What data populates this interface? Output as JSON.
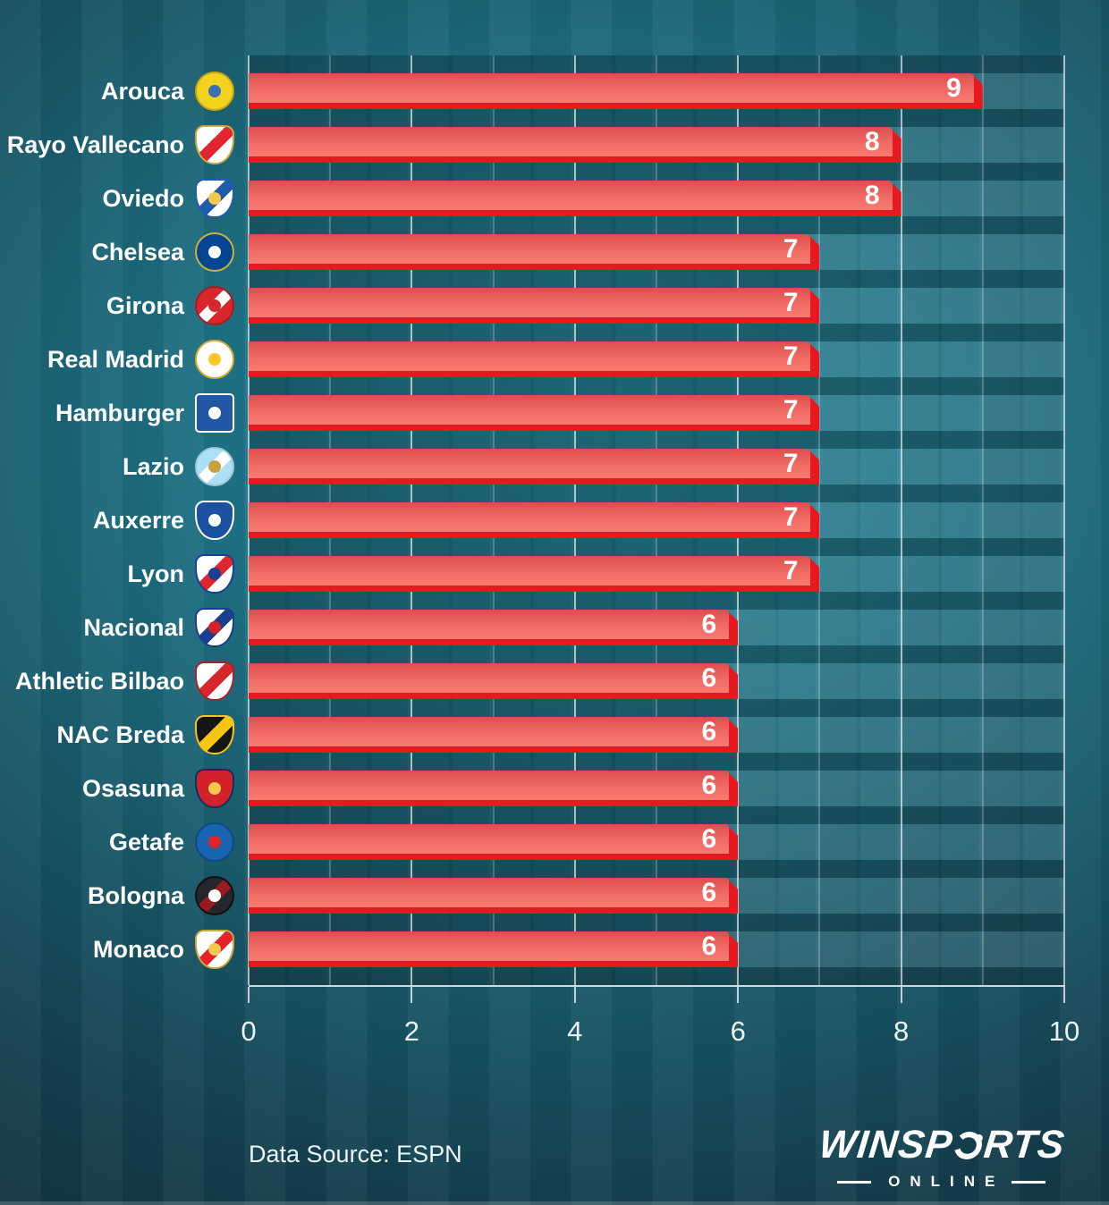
{
  "chart_data": {
    "type": "bar",
    "orientation": "horizontal",
    "title": "",
    "xlabel": "",
    "ylabel": "",
    "xlim": [
      0,
      10
    ],
    "x_ticks": [
      0,
      2,
      4,
      6,
      8,
      10
    ],
    "x_tick_labels": [
      "0",
      "2",
      "4",
      "6",
      "8",
      "10"
    ],
    "grid": "vertical unit gridlines, brighter at even values",
    "legend": "none",
    "categories": [
      "Arouca",
      "Rayo Vallecano",
      "Oviedo",
      "Chelsea",
      "Girona",
      "Real Madrid",
      "Hamburger",
      "Lazio",
      "Auxerre",
      "Lyon",
      "Nacional",
      "Athletic Bilbao",
      "NAC Breda",
      "Osasuna",
      "Getafe",
      "Bologna",
      "Monaco"
    ],
    "values": [
      9,
      8,
      8,
      7,
      7,
      7,
      7,
      7,
      7,
      7,
      6,
      6,
      6,
      6,
      6,
      6,
      6
    ],
    "teams": [
      {
        "name": "Arouca",
        "value": 9,
        "icon": "arouca-crest-icon",
        "crest": {
          "shape": "circle",
          "c1": "#f2d320",
          "c2": "#f2d320",
          "c3": "#3a6fb5",
          "border": "#c7a90f"
        }
      },
      {
        "name": "Rayo Vallecano",
        "value": 8,
        "icon": "rayo-vallecano-crest-icon",
        "crest": {
          "shape": "shield",
          "c1": "#ffffff",
          "c2": "#e3262e",
          "c3": "transparent",
          "border": "#caa83c"
        }
      },
      {
        "name": "Oviedo",
        "value": 8,
        "icon": "oviedo-crest-icon",
        "crest": {
          "shape": "shield",
          "c1": "#ffffff",
          "c2": "#1f5cab",
          "c3": "#f2c94c",
          "border": "#1f5cab"
        }
      },
      {
        "name": "Chelsea",
        "value": 7,
        "icon": "chelsea-crest-icon",
        "crest": {
          "shape": "circle",
          "c1": "#034694",
          "c2": "#034694",
          "c3": "#ffffff",
          "border": "#d4af37"
        }
      },
      {
        "name": "Girona",
        "value": 7,
        "icon": "girona-crest-icon",
        "crest": {
          "shape": "circle",
          "c1": "#d7262c",
          "c2": "#ffffff",
          "c3": "#d7262c",
          "border": "#a31d22"
        }
      },
      {
        "name": "Real Madrid",
        "value": 7,
        "icon": "real-madrid-crest-icon",
        "crest": {
          "shape": "circle",
          "c1": "#ffffff",
          "c2": "#ffffff",
          "c3": "#ffc527",
          "border": "#d8ab2d"
        }
      },
      {
        "name": "Hamburger",
        "value": 7,
        "icon": "hamburger-crest-icon",
        "crest": {
          "shape": "square",
          "c1": "#2157a5",
          "c2": "#2157a5",
          "c3": "#ffffff",
          "border": "#ffffff"
        }
      },
      {
        "name": "Lazio",
        "value": 7,
        "icon": "lazio-crest-icon",
        "crest": {
          "shape": "circle",
          "c1": "#aee0f5",
          "c2": "#ffffff",
          "c3": "#c9a23f",
          "border": "#9ec7da"
        }
      },
      {
        "name": "Auxerre",
        "value": 7,
        "icon": "auxerre-crest-icon",
        "crest": {
          "shape": "shield",
          "c1": "#1c50a1",
          "c2": "#1c50a1",
          "c3": "#ffffff",
          "border": "#ffffff"
        }
      },
      {
        "name": "Lyon",
        "value": 7,
        "icon": "lyon-crest-icon",
        "crest": {
          "shape": "shield",
          "c1": "#ffffff",
          "c2": "#e0262d",
          "c3": "#1b3f94",
          "border": "#1b3f94"
        }
      },
      {
        "name": "Nacional",
        "value": 6,
        "icon": "nacional-crest-icon",
        "crest": {
          "shape": "shield",
          "c1": "#ffffff",
          "c2": "#1b3e8c",
          "c3": "#d42027",
          "border": "#1b3e8c"
        }
      },
      {
        "name": "Athletic Bilbao",
        "value": 6,
        "icon": "athletic-bilbao-crest-icon",
        "crest": {
          "shape": "shield",
          "c1": "#ffffff",
          "c2": "#d7262c",
          "c3": "transparent",
          "border": "#b01f24"
        }
      },
      {
        "name": "NAC Breda",
        "value": 6,
        "icon": "nac-breda-crest-icon",
        "crest": {
          "shape": "shield",
          "c1": "#151515",
          "c2": "#f5c612",
          "c3": "transparent",
          "border": "#f5c612"
        }
      },
      {
        "name": "Osasuna",
        "value": 6,
        "icon": "osasuna-crest-icon",
        "crest": {
          "shape": "shield",
          "c1": "#d1212a",
          "c2": "#d1212a",
          "c3": "#f2c94c",
          "border": "#10305e"
        }
      },
      {
        "name": "Getafe",
        "value": 6,
        "icon": "getafe-crest-icon",
        "crest": {
          "shape": "circle",
          "c1": "#1a63ae",
          "c2": "#1a63ae",
          "c3": "#e32229",
          "border": "#0e4a87"
        }
      },
      {
        "name": "Bologna",
        "value": 6,
        "icon": "bologna-crest-icon",
        "crest": {
          "shape": "circle",
          "c1": "#23262b",
          "c2": "#9a1b1f",
          "c3": "#ffffff",
          "border": "#111111"
        }
      },
      {
        "name": "Monaco",
        "value": 6,
        "icon": "monaco-crest-icon",
        "crest": {
          "shape": "shield",
          "c1": "#ffffff",
          "c2": "#e32229",
          "c3": "#f2c94c",
          "border": "#caa83c"
        }
      }
    ],
    "bar_body_color": "#f0615c",
    "bar_accent_color": "#e7181f",
    "value_label_color": "#ffffff",
    "background_color": "#1a5f70"
  },
  "footer": {
    "source": "Data Source: ESPN"
  },
  "brand": {
    "main_left": "WINSP",
    "main_right": "RTS",
    "sub": "ONLINE"
  }
}
